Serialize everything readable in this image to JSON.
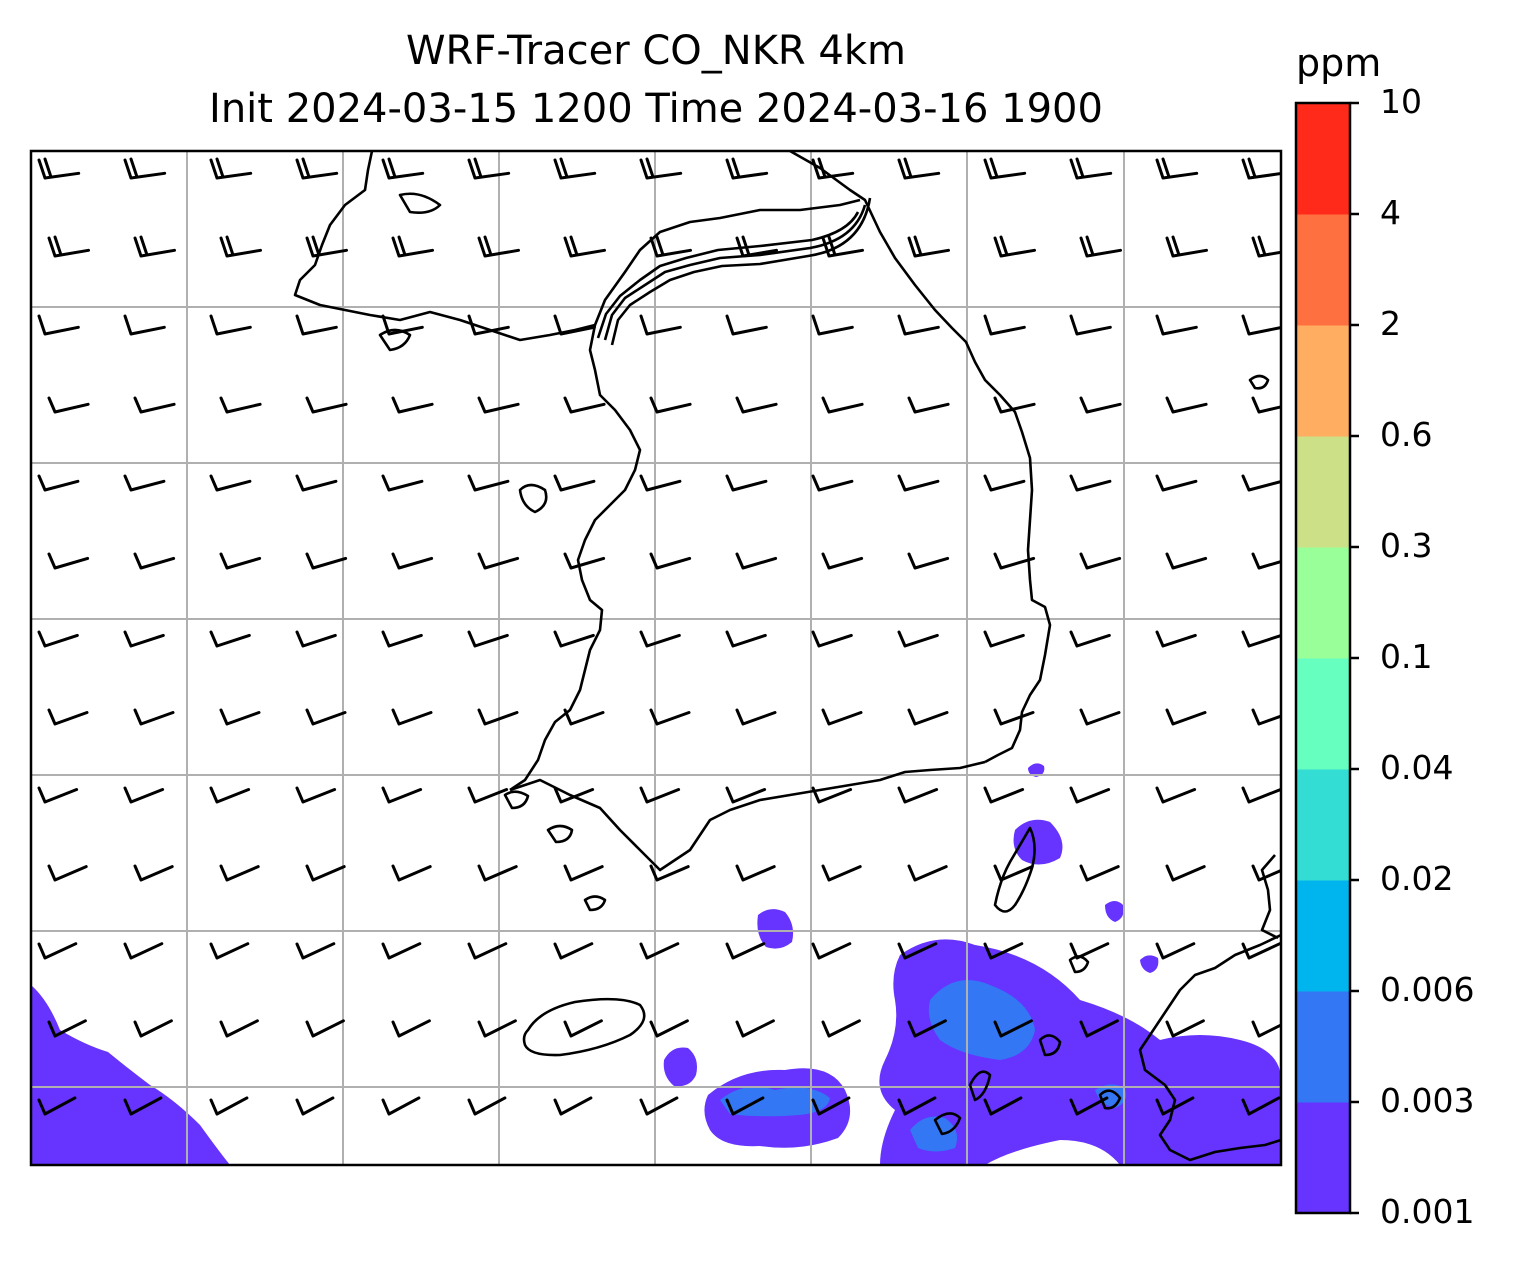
{
  "title": {
    "line1": "WRF-Tracer CO_NKR 4km",
    "line2": "Init 2024-03-15 1200 Time 2024-03-16 1900"
  },
  "colorbar": {
    "unit": "ppm",
    "levels": [
      "0.001",
      "0.003",
      "0.006",
      "0.02",
      "0.04",
      "0.1",
      "0.3",
      "0.6",
      "2",
      "4",
      "10"
    ],
    "colors": [
      "#6633ff",
      "#3377f5",
      "#00b4ee",
      "#33ddd3",
      "#66ffbf",
      "#99ff99",
      "#cce088",
      "#ffad60",
      "#ff7040",
      "#ff2a1a"
    ]
  },
  "map": {
    "background": "#ffffff",
    "gridline_color": "#b0b0b0",
    "coastline_color": "#000000",
    "field": "CO tracer concentration",
    "overlay": "wind barbs"
  }
}
